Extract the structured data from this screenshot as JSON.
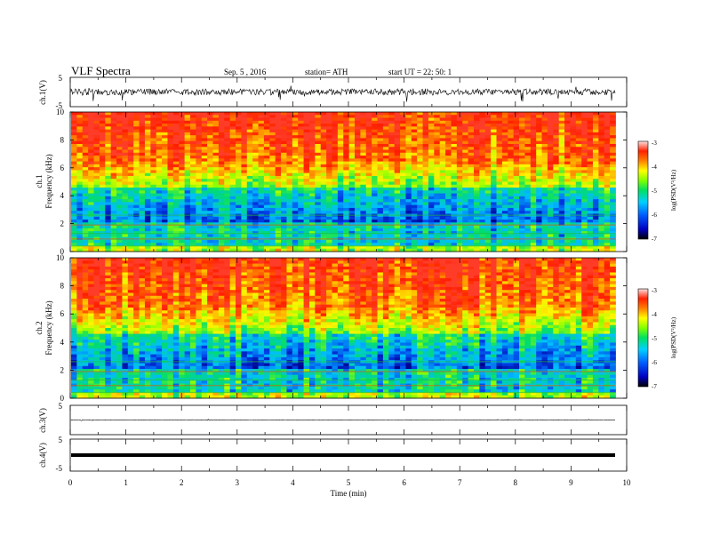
{
  "header": {
    "title": "VLF  Spectra",
    "date": "Sep. 5  , 2016",
    "station": "station= ATH",
    "start": "start  UT  =    22: 50: 1"
  },
  "chart_data": [
    {
      "type": "line",
      "panel": "ch1-waveform",
      "ylabel": "ch.1(V)",
      "ylim": [
        -5,
        5
      ],
      "y_ticks": [
        "5",
        "-5"
      ],
      "xlim": [
        0,
        10
      ]
    },
    {
      "type": "heatmap",
      "panel": "ch1-spectrogram",
      "ylabel_channel": "ch.1",
      "ylabel": "Frequency  (kHz)",
      "ylim": [
        0,
        10
      ],
      "y_ticks": [
        "0",
        "2",
        "4",
        "6",
        "8",
        "10"
      ],
      "xlim": [
        0,
        10
      ],
      "colorbar": {
        "label": "log(PSD(V²/Hz)",
        "ticks": [
          "-3",
          "-4",
          "-5",
          "-6",
          "-7"
        ],
        "range": [
          -7,
          -3
        ]
      }
    },
    {
      "type": "heatmap",
      "panel": "ch2-spectrogram",
      "ylabel_channel": "ch.2",
      "ylabel": "Frequency  (kHz)",
      "ylim": [
        0,
        10
      ],
      "y_ticks": [
        "0",
        "2",
        "4",
        "6",
        "8",
        "10"
      ],
      "xlim": [
        0,
        10
      ],
      "colorbar": {
        "label": "log(PSD(V²/Hz)",
        "ticks": [
          "-3",
          "-4",
          "-5",
          "-6",
          "-7"
        ],
        "range": [
          -7,
          -3
        ]
      }
    },
    {
      "type": "line",
      "panel": "ch3-waveform",
      "ylabel": "ch.3(V)",
      "ylim": [
        -5,
        5
      ],
      "y_ticks": [
        "5"
      ],
      "xlim": [
        0,
        10
      ]
    },
    {
      "type": "line",
      "panel": "ch4-waveform",
      "ylabel": "ch.4(V)",
      "ylim": [
        -5,
        5
      ],
      "y_ticks": [
        "5",
        "-5"
      ],
      "xlim": [
        0,
        10
      ],
      "x_ticks": [
        "0",
        "1",
        "2",
        "3",
        "4",
        "5",
        "6",
        "7",
        "8",
        "9",
        "10"
      ],
      "xlabel": "Time  (min)"
    }
  ]
}
